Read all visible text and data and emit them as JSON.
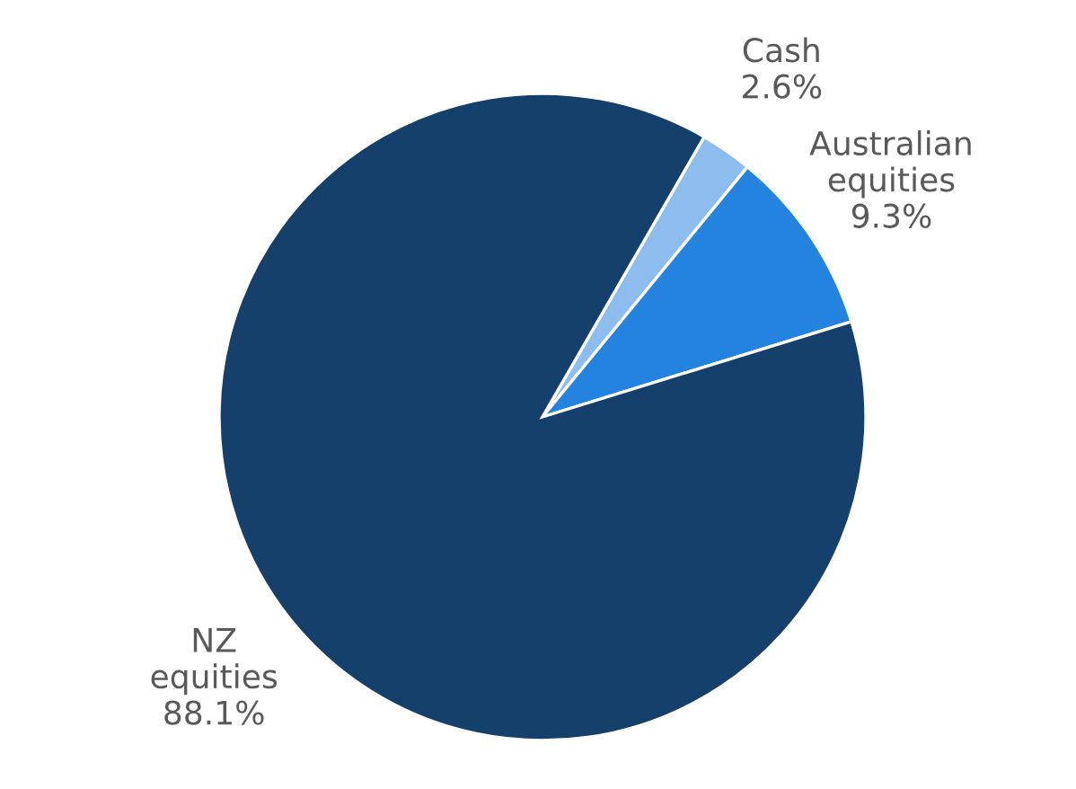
{
  "chart_data": {
    "type": "pie",
    "categories": [
      "Cash",
      "Australian equities",
      "NZ equities"
    ],
    "values": [
      2.6,
      9.3,
      88.1
    ],
    "colors": [
      "#8dbdee",
      "#2383de",
      "#15406b"
    ],
    "value_labels": [
      "2.6%",
      "9.3%",
      "88.1%"
    ]
  }
}
